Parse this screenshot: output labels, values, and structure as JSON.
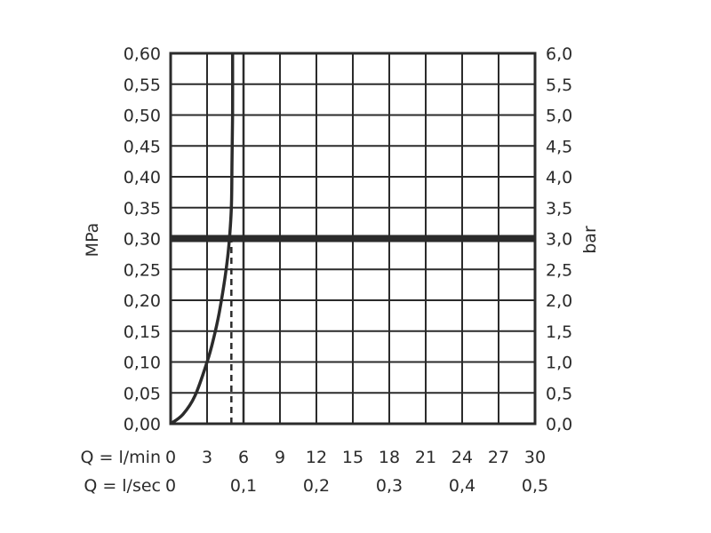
{
  "chart_data": {
    "type": "line",
    "title": "",
    "left_axis": {
      "label": "MPa",
      "ylim": [
        0,
        0.6
      ],
      "ticks": [
        "0,00",
        "0,05",
        "0,10",
        "0,15",
        "0,20",
        "0,25",
        "0,30",
        "0,35",
        "0,40",
        "0,45",
        "0,50",
        "0,55",
        "0,60"
      ]
    },
    "right_axis": {
      "label": "bar",
      "ylim": [
        0,
        6
      ],
      "ticks": [
        "0,0",
        "0,5",
        "1,0",
        "1,5",
        "2,0",
        "2,5",
        "3,0",
        "3,5",
        "4,0",
        "4,5",
        "5,0",
        "5,5",
        "6,0"
      ]
    },
    "x_axis_lmin": {
      "label": "Q = l/min",
      "xlim": [
        0,
        30
      ],
      "ticks": [
        "0",
        "3",
        "6",
        "9",
        "12",
        "15",
        "18",
        "21",
        "24",
        "27",
        "30"
      ]
    },
    "x_axis_lsec": {
      "label": "Q = l/sec",
      "ticks": [
        {
          "value": 0,
          "label": "0"
        },
        {
          "value": 0.1,
          "label": "0,1"
        },
        {
          "value": 0.2,
          "label": "0,2"
        },
        {
          "value": 0.3,
          "label": "0,3"
        },
        {
          "value": 0.4,
          "label": "0,4"
        },
        {
          "value": 0.5,
          "label": "0,5"
        }
      ]
    },
    "grid": true,
    "series": [
      {
        "x": [
          0,
          1,
          2,
          3,
          3.5,
          4,
          4.5,
          4.8,
          5,
          5.05,
          5.1,
          5.1
        ],
        "y": [
          0,
          0.015,
          0.045,
          0.1,
          0.135,
          0.18,
          0.24,
          0.29,
          0.35,
          0.42,
          0.5,
          0.6
        ]
      }
    ],
    "reference_lines": [
      {
        "type": "horizontal",
        "y": 0.3,
        "style": "thick"
      },
      {
        "type": "vertical",
        "x": 5,
        "y_from": 0,
        "y_to": 0.3,
        "style": "dashed"
      },
      {
        "type": "vertical",
        "x": 6,
        "y_from": 0,
        "y_to": 0.6,
        "style": "solid"
      }
    ]
  }
}
